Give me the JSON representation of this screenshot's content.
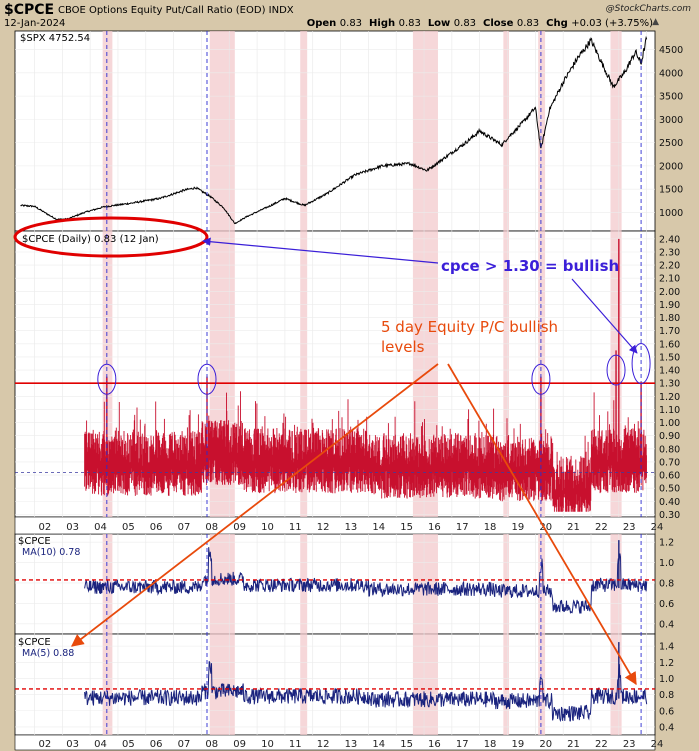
{
  "header": {
    "symbol": "$CPCE",
    "name": "CBOE Options Equity Put/Call Ratio (EOD)",
    "exchange": "INDX",
    "date": "12-Jan-2024",
    "watermark": "@StockCharts.com",
    "open_label": "Open",
    "open": "0.83",
    "high_label": "High",
    "high": "0.83",
    "low_label": "Low",
    "low": "0.83",
    "close_label": "Close",
    "close": "0.83",
    "chg_label": "Chg",
    "chg": "+0.03 (+3.75%)"
  },
  "panels": {
    "spx_legend": "$SPX 4752.54",
    "cpce_legend": "$CPCE (Daily) 0.83 (12 Jan)",
    "ma10_symbol": "$CPCE",
    "ma10_legend": "MA(10) 0.78",
    "ma5_symbol": "$CPCE",
    "ma5_legend": "MA(5) 0.88"
  },
  "annotations": {
    "bullish_threshold": "cpce > 1.30 = bullish",
    "levels_line1": "5 day Equity P/C bullish",
    "levels_line2": "levels"
  },
  "colors": {
    "background": "#d7c8aa",
    "plot": "#ffffff",
    "spx_line": "#000000",
    "cpce_series": "#c8102e",
    "ma_series": "#1a237e",
    "highlight_band": "#f3c9cc",
    "threshold": "#e00000",
    "annotation_red": "#e84a0c",
    "annotation_blue": "#3b1fd8",
    "vertical_marker": "#2b2bd0"
  },
  "chart_data": [
    {
      "type": "line",
      "name": "$SPX",
      "x": [
        2001.5,
        2002.0,
        2002.5,
        2002.8,
        2003.2,
        2003.8,
        2004.5,
        2005.5,
        2006.5,
        2007.4,
        2007.8,
        2008.3,
        2008.8,
        2009.2,
        2009.6,
        2010.5,
        2011.0,
        2011.7,
        2012.5,
        2013.5,
        2014.5,
        2015.5,
        2016.1,
        2016.8,
        2017.5,
        2018.0,
        2018.8,
        2019.0,
        2019.5,
        2020.0,
        2020.2,
        2020.5,
        2021.0,
        2021.5,
        2022.0,
        2022.4,
        2022.8,
        2023.2,
        2023.6,
        2023.8,
        2024.0
      ],
      "y": [
        1150,
        1130,
        950,
        850,
        860,
        1000,
        1120,
        1200,
        1300,
        1480,
        1530,
        1350,
        1100,
        760,
        900,
        1150,
        1300,
        1150,
        1400,
        1800,
        2000,
        2050,
        1900,
        2200,
        2500,
        2750,
        2450,
        2600,
        2900,
        3250,
        2350,
        3200,
        3800,
        4300,
        4700,
        4200,
        3700,
        4000,
        4450,
        4200,
        4752
      ],
      "ylim": [
        600,
        4900
      ],
      "yticks": [
        "1000",
        "1500",
        "2000",
        "2500",
        "3000",
        "3500",
        "4000",
        "4500"
      ]
    },
    {
      "type": "line",
      "name": "$CPCE (Daily)",
      "last": 0.83,
      "ylim": [
        0.28,
        2.46
      ],
      "yticks": [
        "0.30",
        "0.40",
        "0.50",
        "0.60",
        "0.70",
        "0.80",
        "0.90",
        "1.00",
        "1.10",
        "1.20",
        "1.30",
        "1.40",
        "1.50",
        "1.60",
        "1.70",
        "1.80",
        "1.90",
        "2.00",
        "2.10",
        "2.20",
        "2.30",
        "2.40"
      ],
      "threshold": 1.3,
      "spikes": [
        {
          "x": 2004.6,
          "y": 1.35
        },
        {
          "x": 2008.2,
          "y": 1.35
        },
        {
          "x": 2020.2,
          "y": 1.35
        },
        {
          "x": 2022.9,
          "y": 1.55
        },
        {
          "x": 2023.0,
          "y": 2.4
        },
        {
          "x": 2023.8,
          "y": 1.3
        }
      ]
    },
    {
      "type": "line",
      "name": "MA(10)",
      "last": 0.78,
      "ylim": [
        0.3,
        1.28
      ],
      "yticks": [
        "0.4",
        "0.6",
        "0.8",
        "1.0",
        "1.2"
      ],
      "threshold": 0.83
    },
    {
      "type": "line",
      "name": "MA(5)",
      "last": 0.88,
      "ylim": [
        0.3,
        1.55
      ],
      "yticks": [
        "0.4",
        "0.6",
        "0.8",
        "1.0",
        "1.2",
        "1.4"
      ],
      "threshold": 0.87
    },
    {
      "type": "axis",
      "xlim": [
        2001.3,
        2024.3
      ],
      "xticks": [
        "02",
        "03",
        "04",
        "05",
        "06",
        "07",
        "08",
        "09",
        "10",
        "11",
        "12",
        "13",
        "14",
        "15",
        "16",
        "17",
        "18",
        "19",
        "20",
        "21",
        "22",
        "23",
        "24"
      ],
      "vertical_markers": [
        2004.6,
        2008.2,
        2020.2,
        2023.8
      ],
      "bands": [
        [
          2004.45,
          2004.8
        ],
        [
          2008.3,
          2009.2
        ],
        [
          2011.55,
          2011.8
        ],
        [
          2015.6,
          2016.5
        ],
        [
          2018.85,
          2019.05
        ],
        [
          2020.1,
          2020.35
        ],
        [
          2022.7,
          2023.1
        ]
      ]
    }
  ]
}
